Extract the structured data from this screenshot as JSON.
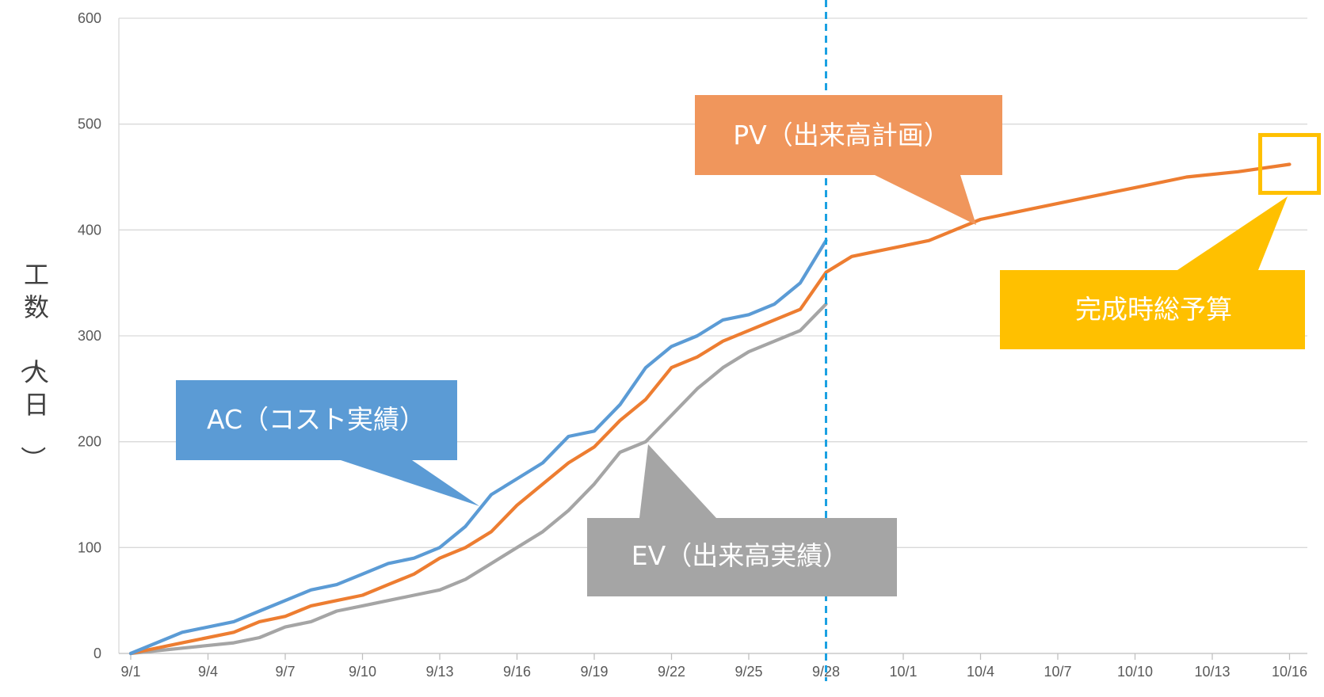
{
  "chart_data": {
    "type": "line",
    "ylabel": "工数（人日）",
    "ylim": [
      0,
      600
    ],
    "yticks": [
      0,
      100,
      200,
      300,
      400,
      500,
      600
    ],
    "x_labels": [
      "9/1",
      "9/4",
      "9/7",
      "9/10",
      "9/13",
      "9/16",
      "9/19",
      "9/22",
      "9/25",
      "9/28",
      "10/1",
      "10/4",
      "10/7",
      "10/10",
      "10/13",
      "10/16"
    ],
    "x_dates": [
      "9/1",
      "9/2",
      "9/3",
      "9/4",
      "9/5",
      "9/6",
      "9/7",
      "9/8",
      "9/9",
      "9/10",
      "9/11",
      "9/12",
      "9/13",
      "9/14",
      "9/15",
      "9/16",
      "9/17",
      "9/18",
      "9/19",
      "9/20",
      "9/21",
      "9/22",
      "9/23",
      "9/24",
      "9/25",
      "9/26",
      "9/27",
      "9/28",
      "9/29",
      "9/30",
      "10/1",
      "10/2",
      "10/3",
      "10/4",
      "10/5",
      "10/6",
      "10/7",
      "10/8",
      "10/9",
      "10/10",
      "10/11",
      "10/12",
      "10/13",
      "10/14",
      "10/15",
      "10/16"
    ],
    "grid": true,
    "series": [
      {
        "key": "ac",
        "color": "#5B9BD5",
        "points": [
          [
            "9/1",
            0
          ],
          [
            "9/3",
            20
          ],
          [
            "9/5",
            30
          ],
          [
            "9/6",
            40
          ],
          [
            "9/7",
            50
          ],
          [
            "9/8",
            60
          ],
          [
            "9/9",
            65
          ],
          [
            "9/10",
            75
          ],
          [
            "9/11",
            85
          ],
          [
            "9/12",
            90
          ],
          [
            "9/13",
            100
          ],
          [
            "9/14",
            120
          ],
          [
            "9/15",
            150
          ],
          [
            "9/16",
            165
          ],
          [
            "9/17",
            180
          ],
          [
            "9/18",
            205
          ],
          [
            "9/19",
            210
          ],
          [
            "9/20",
            235
          ],
          [
            "9/21",
            270
          ],
          [
            "9/22",
            290
          ],
          [
            "9/23",
            300
          ],
          [
            "9/24",
            315
          ],
          [
            "9/25",
            320
          ],
          [
            "9/26",
            330
          ],
          [
            "9/27",
            350
          ],
          [
            "9/28",
            390
          ]
        ]
      },
      {
        "key": "pv",
        "color": "#ED7D31",
        "points": [
          [
            "9/1",
            0
          ],
          [
            "9/3",
            10
          ],
          [
            "9/5",
            20
          ],
          [
            "9/6",
            30
          ],
          [
            "9/7",
            35
          ],
          [
            "9/8",
            45
          ],
          [
            "9/9",
            50
          ],
          [
            "9/10",
            55
          ],
          [
            "9/11",
            65
          ],
          [
            "9/12",
            75
          ],
          [
            "9/13",
            90
          ],
          [
            "9/14",
            100
          ],
          [
            "9/15",
            115
          ],
          [
            "9/16",
            140
          ],
          [
            "9/17",
            160
          ],
          [
            "9/18",
            180
          ],
          [
            "9/19",
            195
          ],
          [
            "9/20",
            220
          ],
          [
            "9/21",
            240
          ],
          [
            "9/22",
            270
          ],
          [
            "9/23",
            280
          ],
          [
            "9/24",
            295
          ],
          [
            "9/25",
            305
          ],
          [
            "9/26",
            315
          ],
          [
            "9/27",
            325
          ],
          [
            "9/28",
            360
          ],
          [
            "9/29",
            375
          ],
          [
            "9/30",
            380
          ],
          [
            "10/1",
            385
          ],
          [
            "10/2",
            390
          ],
          [
            "10/3",
            400
          ],
          [
            "10/4",
            410
          ],
          [
            "10/6",
            420
          ],
          [
            "10/8",
            430
          ],
          [
            "10/10",
            440
          ],
          [
            "10/12",
            450
          ],
          [
            "10/14",
            455
          ],
          [
            "10/16",
            462
          ]
        ]
      },
      {
        "key": "ev",
        "color": "#A5A5A5",
        "points": [
          [
            "9/1",
            0
          ],
          [
            "9/3",
            5
          ],
          [
            "9/5",
            10
          ],
          [
            "9/6",
            15
          ],
          [
            "9/7",
            25
          ],
          [
            "9/8",
            30
          ],
          [
            "9/9",
            40
          ],
          [
            "9/10",
            45
          ],
          [
            "9/11",
            50
          ],
          [
            "9/12",
            55
          ],
          [
            "9/13",
            60
          ],
          [
            "9/14",
            70
          ],
          [
            "9/15",
            85
          ],
          [
            "9/16",
            100
          ],
          [
            "9/17",
            115
          ],
          [
            "9/18",
            135
          ],
          [
            "9/19",
            160
          ],
          [
            "9/20",
            190
          ],
          [
            "9/21",
            200
          ],
          [
            "9/22",
            225
          ],
          [
            "9/23",
            250
          ],
          [
            "9/24",
            270
          ],
          [
            "9/25",
            285
          ],
          [
            "9/26",
            295
          ],
          [
            "9/27",
            305
          ],
          [
            "9/28",
            330
          ]
        ]
      }
    ],
    "status_date": "9/28",
    "status_line_color": "#1BA1E2",
    "bac": {
      "date": "10/16",
      "value": 462,
      "color": "#FFC000"
    }
  },
  "callouts": {
    "pv": {
      "text": "PV（出来高計画）",
      "color": "#F0965C"
    },
    "ac": {
      "text": "AC（コスト実績）",
      "color": "#5B9BD5"
    },
    "ev": {
      "text": "EV（出来高実績）",
      "color": "#A5A5A5"
    },
    "bac": {
      "text": "完成時総予算",
      "color": "#FFC000"
    }
  }
}
